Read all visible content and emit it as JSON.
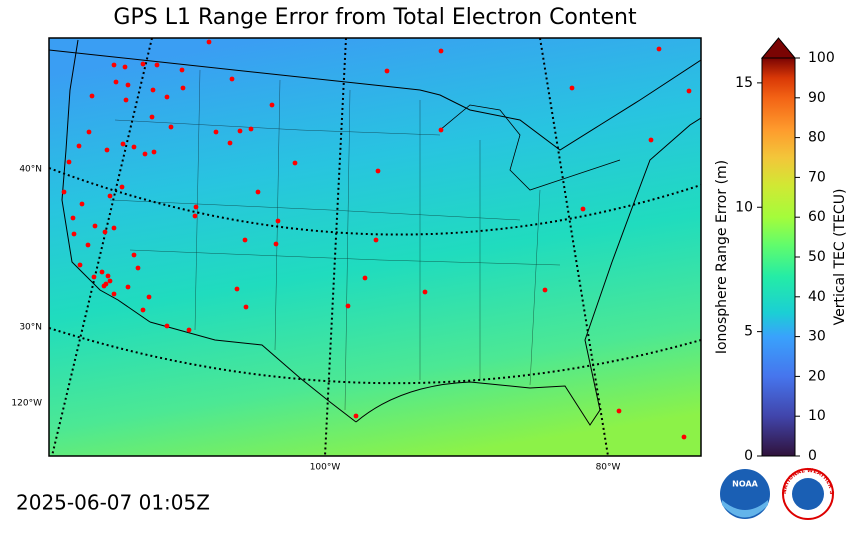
{
  "title": "GPS L1 Range Error from Total Electron Content",
  "timestamp": "2025-06-07 01:05Z",
  "map_labels": {
    "lat": [
      "40°N",
      "30°N"
    ],
    "lon": [
      "120°W",
      "100°W",
      "80°W"
    ]
  },
  "colorbar": {
    "range_label": "Ionosphere Range Error (m)",
    "range_lim": [
      0,
      16
    ],
    "range_ticks": [
      0,
      5,
      10,
      15
    ],
    "tec_label": "Vertical TEC (TECU)",
    "tec_lim": [
      0,
      100
    ],
    "tec_ticks": [
      0,
      10,
      20,
      30,
      40,
      50,
      60,
      70,
      80,
      90,
      100
    ]
  },
  "logos": {
    "noaa": "NOAA",
    "nws": "NATIONAL WEATHER SERVICE"
  }
}
